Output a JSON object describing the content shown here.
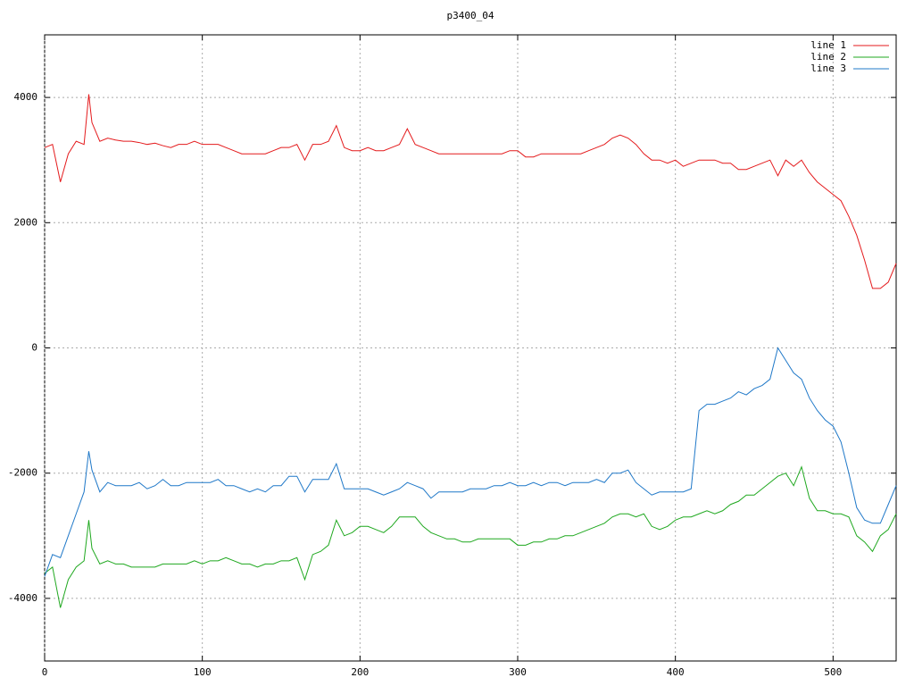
{
  "chart_data": {
    "type": "line",
    "title": "p3400_04",
    "grid": true,
    "legend": "top right",
    "xlim": [
      0,
      540
    ],
    "xticks": [
      0,
      100,
      200,
      300,
      400,
      500
    ],
    "ylim": [
      -5000,
      5000
    ],
    "yticks": [
      -4000,
      -2000,
      0,
      2000,
      4000
    ],
    "x": [
      0,
      5,
      10,
      15,
      20,
      25,
      28,
      30,
      35,
      40,
      45,
      50,
      55,
      60,
      65,
      70,
      75,
      80,
      85,
      90,
      95,
      100,
      105,
      110,
      115,
      120,
      125,
      130,
      135,
      140,
      145,
      150,
      155,
      160,
      165,
      170,
      175,
      180,
      185,
      190,
      195,
      200,
      205,
      210,
      215,
      220,
      225,
      230,
      235,
      240,
      245,
      250,
      255,
      260,
      265,
      270,
      275,
      280,
      285,
      290,
      295,
      300,
      305,
      310,
      315,
      320,
      325,
      330,
      335,
      340,
      345,
      350,
      355,
      360,
      365,
      370,
      375,
      380,
      385,
      390,
      395,
      400,
      405,
      410,
      415,
      420,
      425,
      430,
      435,
      440,
      445,
      450,
      455,
      460,
      465,
      470,
      475,
      480,
      485,
      490,
      495,
      500,
      505,
      510,
      515,
      520,
      525,
      530,
      535,
      540
    ],
    "series": [
      {
        "name": "line 1",
        "color": "#e41a1c",
        "values": [
          3200,
          3250,
          2650,
          3100,
          3300,
          3250,
          4050,
          3600,
          3300,
          3350,
          3320,
          3300,
          3300,
          3280,
          3250,
          3270,
          3230,
          3200,
          3250,
          3250,
          3300,
          3250,
          3250,
          3250,
          3200,
          3150,
          3100,
          3100,
          3100,
          3100,
          3150,
          3200,
          3200,
          3250,
          3000,
          3250,
          3250,
          3300,
          3550,
          3200,
          3150,
          3150,
          3200,
          3150,
          3150,
          3200,
          3250,
          3500,
          3250,
          3200,
          3150,
          3100,
          3100,
          3100,
          3100,
          3100,
          3100,
          3100,
          3100,
          3100,
          3150,
          3150,
          3050,
          3050,
          3100,
          3100,
          3100,
          3100,
          3100,
          3100,
          3150,
          3200,
          3250,
          3350,
          3400,
          3350,
          3250,
          3100,
          3000,
          3000,
          2950,
          3000,
          2900,
          2950,
          3000,
          3000,
          3000,
          2950,
          2950,
          2850,
          2850,
          2900,
          2950,
          3000,
          2750,
          3000,
          2900,
          3000,
          2800,
          2650,
          2550,
          2450,
          2350,
          2100,
          1800,
          1400,
          950,
          950,
          1050,
          1350
        ]
      },
      {
        "name": "line 2",
        "color": "#1fa81f",
        "values": [
          -3600,
          -3500,
          -4150,
          -3700,
          -3500,
          -3400,
          -2750,
          -3200,
          -3450,
          -3400,
          -3450,
          -3450,
          -3500,
          -3500,
          -3500,
          -3500,
          -3450,
          -3450,
          -3450,
          -3450,
          -3400,
          -3450,
          -3400,
          -3400,
          -3350,
          -3400,
          -3450,
          -3450,
          -3500,
          -3450,
          -3450,
          -3400,
          -3400,
          -3350,
          -3700,
          -3300,
          -3250,
          -3150,
          -2750,
          -3000,
          -2950,
          -2850,
          -2850,
          -2900,
          -2950,
          -2850,
          -2700,
          -2700,
          -2700,
          -2850,
          -2950,
          -3000,
          -3050,
          -3050,
          -3100,
          -3100,
          -3050,
          -3050,
          -3050,
          -3050,
          -3050,
          -3150,
          -3150,
          -3100,
          -3100,
          -3050,
          -3050,
          -3000,
          -3000,
          -2950,
          -2900,
          -2850,
          -2800,
          -2700,
          -2650,
          -2650,
          -2700,
          -2650,
          -2850,
          -2900,
          -2850,
          -2750,
          -2700,
          -2700,
          -2650,
          -2600,
          -2650,
          -2600,
          -2500,
          -2450,
          -2350,
          -2350,
          -2250,
          -2150,
          -2050,
          -2000,
          -2200,
          -1900,
          -2400,
          -2600,
          -2600,
          -2650,
          -2650,
          -2700,
          -3000,
          -3100,
          -3250,
          -3000,
          -2900,
          -2650
        ]
      },
      {
        "name": "line 3",
        "color": "#1f78c8",
        "values": [
          -3650,
          -3300,
          -3350,
          -3000,
          -2650,
          -2300,
          -1650,
          -1950,
          -2300,
          -2150,
          -2200,
          -2200,
          -2200,
          -2150,
          -2250,
          -2200,
          -2100,
          -2200,
          -2200,
          -2150,
          -2150,
          -2150,
          -2150,
          -2100,
          -2200,
          -2200,
          -2250,
          -2300,
          -2250,
          -2300,
          -2200,
          -2200,
          -2050,
          -2050,
          -2300,
          -2100,
          -2100,
          -2100,
          -1850,
          -2250,
          -2250,
          -2250,
          -2250,
          -2300,
          -2350,
          -2300,
          -2250,
          -2150,
          -2200,
          -2250,
          -2400,
          -2300,
          -2300,
          -2300,
          -2300,
          -2250,
          -2250,
          -2250,
          -2200,
          -2200,
          -2150,
          -2200,
          -2200,
          -2150,
          -2200,
          -2150,
          -2150,
          -2200,
          -2150,
          -2150,
          -2150,
          -2100,
          -2150,
          -2000,
          -2000,
          -1950,
          -2150,
          -2250,
          -2350,
          -2300,
          -2300,
          -2300,
          -2300,
          -2250,
          -1000,
          -900,
          -900,
          -850,
          -800,
          -700,
          -750,
          -650,
          -600,
          -500,
          0,
          -200,
          -400,
          -500,
          -800,
          -1000,
          -1150,
          -1250,
          -1500,
          -2000,
          -2550,
          -2750,
          -2800,
          -2800,
          -2500,
          -2200
        ]
      }
    ]
  }
}
